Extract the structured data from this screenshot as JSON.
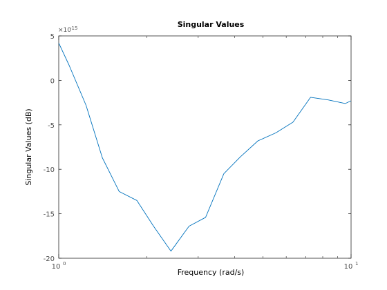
{
  "chart_data": {
    "type": "line",
    "title": "Singular Values",
    "xlabel": "Frequency (rad/s)",
    "ylabel": "Singular Values (dB)",
    "x_scale": "log",
    "xlim": [
      1,
      10
    ],
    "ylim": [
      -20,
      5
    ],
    "y_multiplier": "×10",
    "y_exponent": "-15",
    "yticks": [
      5,
      0,
      -5,
      -10,
      -15,
      -20
    ],
    "ytick_labels": [
      "5",
      "0",
      "-5",
      "-10",
      "-15",
      "-20"
    ],
    "xticks": [
      {
        "value": 1,
        "base": "10",
        "exp": "0"
      },
      {
        "value": 10,
        "base": "10",
        "exp": "1"
      }
    ],
    "grid": false,
    "series_color": "#0072bd",
    "series": [
      {
        "x": [
          1.0,
          1.085,
          1.24,
          1.41,
          1.61,
          1.85,
          2.11,
          2.42,
          2.79,
          3.18,
          3.67,
          4.18,
          4.8,
          5.53,
          6.33,
          7.27,
          8.35,
          9.56,
          10.0
        ],
        "values": [
          4.2,
          1.7,
          -2.8,
          -8.7,
          -12.5,
          -13.5,
          -16.4,
          -19.2,
          -16.4,
          -15.4,
          -10.5,
          -8.6,
          -6.8,
          -5.9,
          -4.7,
          -1.9,
          -2.2,
          -2.6,
          -2.3
        ]
      }
    ]
  }
}
